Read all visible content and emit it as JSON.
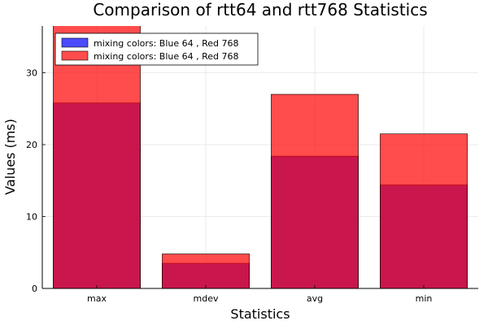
{
  "chart_data": {
    "type": "bar",
    "title": "Comparison of rtt64 and rtt768 Statistics",
    "xlabel": "Statistics",
    "ylabel": "Values (ms)",
    "categories": [
      "max",
      "mdev",
      "avg",
      "min"
    ],
    "ylim": [
      0,
      36.5
    ],
    "yticks": [
      0,
      10,
      20,
      30
    ],
    "grid": true,
    "legend_position": "top-left",
    "series": [
      {
        "name": "mixing colors: Blue 64 , Red 768",
        "color": "#0000ff",
        "values": [
          25.8,
          3.5,
          18.4,
          14.4
        ]
      },
      {
        "name": "mixing colors: Blue 64 , Red 768",
        "color": "#ff0000",
        "values": [
          37.0,
          4.8,
          27.0,
          21.5
        ]
      }
    ]
  }
}
